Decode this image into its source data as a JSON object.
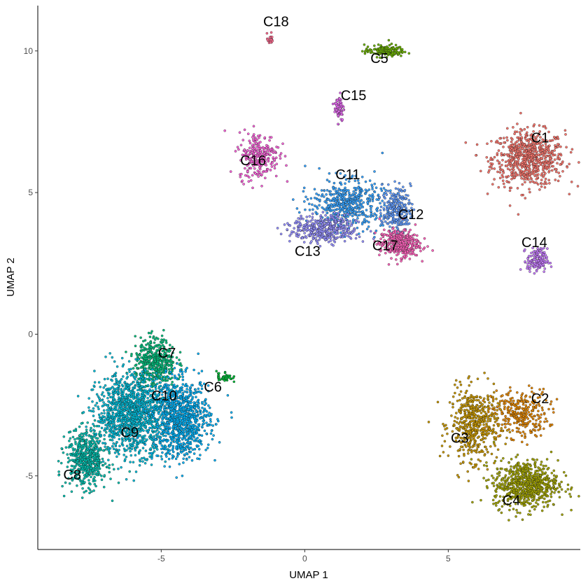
{
  "chart_data": {
    "type": "scatter",
    "title": "",
    "xlabel": "UMAP 1",
    "ylabel": "UMAP 2",
    "xlim": [
      -9.3,
      9.6
    ],
    "ylim": [
      -7.6,
      11.6
    ],
    "xticks": [
      -5,
      0,
      5
    ],
    "yticks": [
      -5,
      0,
      5,
      10
    ],
    "xtick_labels": [
      "-5",
      "0",
      "5"
    ],
    "ytick_labels": [
      "-5",
      "0",
      "5",
      "10"
    ],
    "grid": false,
    "legend": "none",
    "point_outline_color": "#1a1a1a",
    "clusters": [
      {
        "label": "C1",
        "color": "#F8766D",
        "label_pos": [
          8.2,
          6.9
        ],
        "center": [
          7.8,
          6.2
        ],
        "spread": [
          0.9,
          0.7
        ],
        "n": 700
      },
      {
        "label": "C2",
        "color": "#E58700",
        "label_pos": [
          8.2,
          -2.3
        ],
        "center": [
          7.5,
          -2.8
        ],
        "spread": [
          0.7,
          0.6
        ],
        "n": 300
      },
      {
        "label": "C3",
        "color": "#C99800",
        "label_pos": [
          5.4,
          -3.7
        ],
        "center": [
          5.9,
          -3.2
        ],
        "spread": [
          0.6,
          0.9
        ],
        "n": 500
      },
      {
        "label": "C4",
        "color": "#A3A500",
        "label_pos": [
          7.2,
          -5.9
        ],
        "center": [
          7.7,
          -5.3
        ],
        "spread": [
          0.8,
          0.6
        ],
        "n": 700
      },
      {
        "label": "C5",
        "color": "#6BB100",
        "label_pos": [
          2.6,
          9.7
        ],
        "center": [
          2.8,
          10.0
        ],
        "spread": [
          0.5,
          0.15
        ],
        "n": 150
      },
      {
        "label": "C6",
        "color": "#00BA38",
        "label_pos": [
          -3.2,
          -1.9
        ],
        "center": [
          -2.8,
          -1.5
        ],
        "spread": [
          0.2,
          0.15
        ],
        "n": 40
      },
      {
        "label": "C7",
        "color": "#00BF7D",
        "label_pos": [
          -4.8,
          -0.7
        ],
        "center": [
          -5.2,
          -1.0
        ],
        "spread": [
          0.5,
          0.6
        ],
        "n": 450
      },
      {
        "label": "C8",
        "color": "#00C0AF",
        "label_pos": [
          -8.1,
          -5.0
        ],
        "center": [
          -7.6,
          -4.4
        ],
        "spread": [
          0.5,
          0.7
        ],
        "n": 550
      },
      {
        "label": "C9",
        "color": "#00BCD8",
        "label_pos": [
          -6.1,
          -3.5
        ],
        "center": [
          -6.0,
          -2.8
        ],
        "spread": [
          0.9,
          1.0
        ],
        "n": 1300
      },
      {
        "label": "C10",
        "color": "#00B0F6",
        "label_pos": [
          -4.9,
          -2.2
        ],
        "center": [
          -4.3,
          -3.0
        ],
        "spread": [
          0.7,
          1.0
        ],
        "n": 900
      },
      {
        "label": "C11",
        "color": "#35A2FF",
        "label_pos": [
          1.5,
          5.6
        ],
        "center": [
          1.5,
          4.6
        ],
        "spread": [
          0.9,
          0.6
        ],
        "n": 500
      },
      {
        "label": "C12",
        "color": "#619CFF",
        "label_pos": [
          3.7,
          4.2
        ],
        "center": [
          3.2,
          4.4
        ],
        "spread": [
          0.35,
          0.55
        ],
        "n": 250
      },
      {
        "label": "C13",
        "color": "#9590FF",
        "label_pos": [
          0.1,
          2.9
        ],
        "center": [
          0.7,
          3.7
        ],
        "spread": [
          0.8,
          0.35
        ],
        "n": 400
      },
      {
        "label": "C14",
        "color": "#C77CFF",
        "label_pos": [
          8.0,
          3.2
        ],
        "center": [
          8.1,
          2.6
        ],
        "spread": [
          0.25,
          0.3
        ],
        "n": 150
      },
      {
        "label": "C15",
        "color": "#E76BF3",
        "label_pos": [
          1.7,
          8.4
        ],
        "center": [
          1.2,
          8.0
        ],
        "spread": [
          0.12,
          0.35
        ],
        "n": 70
      },
      {
        "label": "C16",
        "color": "#FA62DB",
        "label_pos": [
          -1.8,
          6.1
        ],
        "center": [
          -1.6,
          6.3
        ],
        "spread": [
          0.5,
          0.6
        ],
        "n": 250
      },
      {
        "label": "C17",
        "color": "#FF62BC",
        "label_pos": [
          2.8,
          3.1
        ],
        "center": [
          3.3,
          3.2
        ],
        "spread": [
          0.5,
          0.35
        ],
        "n": 350
      },
      {
        "label": "C18",
        "color": "#FF6C91",
        "label_pos": [
          -1.0,
          11.0
        ],
        "center": [
          -1.2,
          10.4
        ],
        "spread": [
          0.08,
          0.15
        ],
        "n": 20
      }
    ]
  }
}
